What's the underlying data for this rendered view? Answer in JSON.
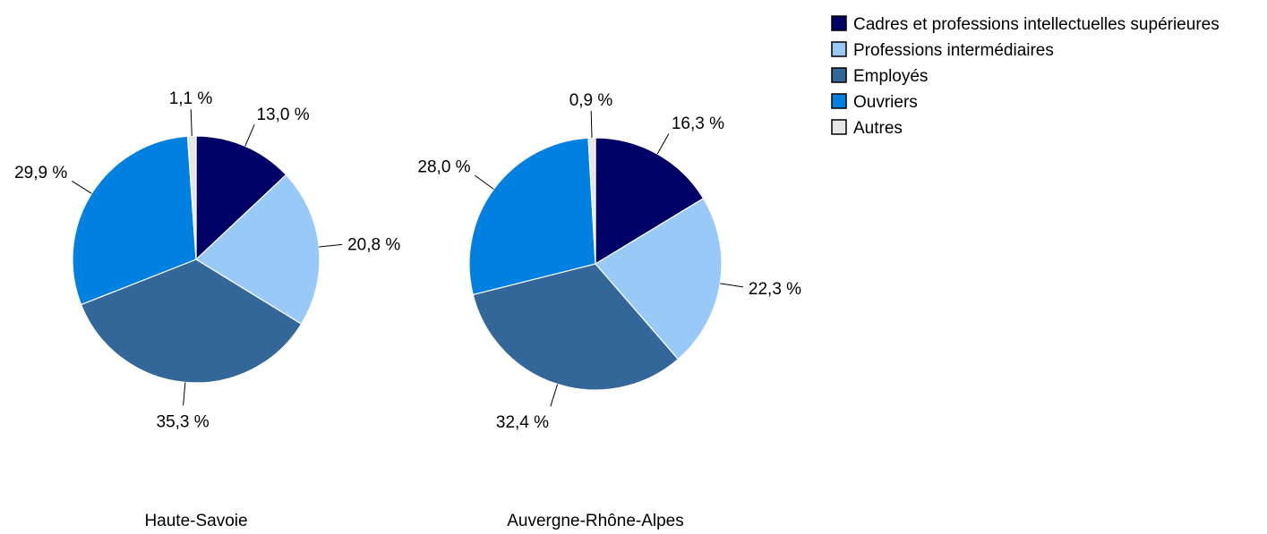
{
  "chart_data": [
    {
      "type": "pie",
      "title": "Haute-Savoie",
      "categories": [
        "Cadres et professions intellectuelles supérieures",
        "Professions intermédiaires",
        "Employés",
        "Ouvriers",
        "Autres"
      ],
      "values": [
        13.0,
        20.8,
        35.3,
        29.9,
        1.1
      ],
      "labels": [
        "13,0 %",
        "20,8 %",
        "35,3 %",
        "29,9 %",
        "1,1 %"
      ],
      "colors": [
        "#000066",
        "#99c9f7",
        "#336699",
        "#0080e0",
        "#e6e6e6"
      ],
      "legend": "top-right"
    },
    {
      "type": "pie",
      "title": "Auvergne-Rhône-Alpes",
      "categories": [
        "Cadres et professions intellectuelles supérieures",
        "Professions intermédiaires",
        "Employés",
        "Ouvriers",
        "Autres"
      ],
      "values": [
        16.3,
        22.3,
        32.4,
        28.0,
        0.9
      ],
      "labels": [
        "16,3 %",
        "22,3 %",
        "32,4 %",
        "28,0 %",
        "0,9 %"
      ],
      "colors": [
        "#000066",
        "#99c9f7",
        "#336699",
        "#0080e0",
        "#e6e6e6"
      ],
      "legend": "top-right"
    }
  ],
  "legend": {
    "items": [
      {
        "label": "Cadres et professions intellectuelles supérieures",
        "color": "#000066"
      },
      {
        "label": "Professions intermédiaires",
        "color": "#99c9f7"
      },
      {
        "label": "Employés",
        "color": "#336699"
      },
      {
        "label": "Ouvriers",
        "color": "#0080e0"
      },
      {
        "label": "Autres",
        "color": "#e6e6e6"
      }
    ]
  }
}
